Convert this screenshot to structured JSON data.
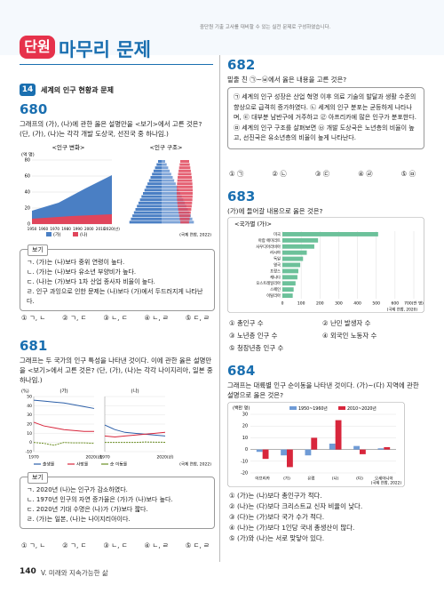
{
  "header": {
    "badge": "단원",
    "title": "마무리 문제",
    "note": "중단원 기출 고사를 대비할 수 있는 실전 문제로 구성하였습니다."
  },
  "section": {
    "number": "14",
    "title": "세계의 인구 현황과 문제"
  },
  "q680": {
    "number": "680",
    "question": "그래프의 (가), (나)에 관한 옳은 설명만을 <보기>에서 고른 것은? (단, (가), (나)는 각각 개발 도상국, 선진국 중 하나임.)",
    "chart": {
      "left_title": "<인구 변화>",
      "right_title": "<인구 구조>",
      "unit": "(억 명)",
      "yticks": [
        80,
        60,
        40,
        20,
        0
      ],
      "xticks": [
        "1950",
        "1960",
        "1970",
        "1980",
        "1990",
        "2000",
        "2010",
        "2020(년)"
      ],
      "legend": [
        "(가)",
        "(나)"
      ],
      "source": "(국제 연합, 2022)"
    },
    "bogi_title": "보기",
    "bogi": [
      "ㄱ. (가)는 (나)보다 중위 연령이 높다.",
      "ㄴ. (가)는 (나)보다 유소년 부양비가 높다.",
      "ㄷ. (나)는 (가)보다 1차 산업 종사자 비율이 높다.",
      "ㄹ. 인구 과잉으로 인한 문제는 (나)보다 (가)에서 두드러지게 나타난다."
    ],
    "options": [
      "① ㄱ, ㄴ",
      "② ㄱ, ㄷ",
      "③ ㄴ, ㄷ",
      "④ ㄴ, ㄹ",
      "⑤ ㄷ, ㄹ"
    ]
  },
  "q681": {
    "number": "681",
    "question": "그래프는 두 국가의 인구 특성을 나타낸 것이다. 이에 관한 옳은 설명만을 <보기>에서 고른 것은? (단, (가), (나)는 각각 나이지리아, 일본 중 하나임.)",
    "chart": {
      "unit": "(%)",
      "panels": [
        "(가)",
        "(나)"
      ],
      "yticks": [
        50,
        40,
        30,
        20,
        10,
        0,
        -10
      ],
      "xticks": [
        "1970",
        "2020(년)"
      ],
      "legend": [
        "출생률",
        "사망률",
        "순 이동률"
      ],
      "source": "(국제 연합, 2022)"
    },
    "bogi_title": "보기",
    "bogi": [
      "ㄱ. 2020년 (나)는 인구가 감소하였다.",
      "ㄴ. 1970년 인구의 자연 증가율은 (가)가 (나)보다 높다.",
      "ㄷ. 2020년 기대 수명은 (나)가 (가)보다 짧다.",
      "ㄹ. (가)는 일본, (나)는 나이지리아이다."
    ],
    "options": [
      "① ㄱ, ㄴ",
      "② ㄱ, ㄷ",
      "③ ㄴ, ㄷ",
      "④ ㄴ, ㄹ",
      "⑤ ㄷ, ㄹ"
    ]
  },
  "q682": {
    "number": "682",
    "question": "밑줄 친 ㉠~㉥에서 옳은 내용을 고른 것은?",
    "box": "㉠ 세계의 인구 성장은 산업 혁명 이후 의료 기술의 발달과 생활 수준의 향상으로 급격히 증가하였다. ㉡ 세계의 인구 분포는 균등하게 나타나며, ㉢ 대부분 남반구에 거주하고 ㉣ 아프리카에 많은 인구가 분포한다. ㉤ 세계의 인구 구조를 살펴보면 ㉥ 개발 도상국은 노년층의 비율이 높고, 선진국은 유소년층의 비율이 높게 나타난다.",
    "options": [
      "① ㉠",
      "② ㉡",
      "③ ㉢",
      "④ ㉣",
      "⑤ ㉤"
    ]
  },
  "q683": {
    "number": "683",
    "question": "(가)에 들어갈 내용으로 옳은 것은?",
    "chart_data": {
      "type": "bar",
      "title": "<국가별 (가)>",
      "color": "#6cc19a",
      "categories": [
        "미국",
        "아랍 에미리트",
        "사우디아라비아",
        "러시아",
        "독일",
        "영국",
        "프랑스",
        "캐나다",
        "오스트레일리아",
        "스페인",
        "이탈리아"
      ],
      "values": [
        510,
        190,
        170,
        130,
        110,
        95,
        85,
        80,
        70,
        60,
        55
      ],
      "xlim": [
        0,
        700
      ],
      "xticks": [
        0,
        100,
        200,
        300,
        400,
        500,
        600,
        {
          "value": 700,
          "label": "700(만 명)"
        }
      ],
      "source": "(국제 연합, 2020)"
    },
    "options": [
      "① 총인구 수",
      "② 난민 발생자 수",
      "③ 노년층 인구 수",
      "④ 외국인 노동자 수",
      "⑤ 청장년층 인구 수"
    ]
  },
  "q684": {
    "number": "684",
    "question": "그래프는 대륙별 인구 순이동을 나타낸 것이다. (가)~(다) 지역에 관한 설명으로 옳은 것은?",
    "chart_data": {
      "type": "bar",
      "unit": "(백만 명)",
      "categories": [
        "아프리카",
        "(가)",
        "유럽",
        "(나)",
        "(다)",
        "오세아니아"
      ],
      "series": [
        {
          "name": "1950~1960년",
          "color": "#6f9bd6",
          "values": [
            -2,
            -5,
            -5,
            5,
            3,
            1
          ]
        },
        {
          "name": "2010~2020년",
          "color": "#d8263c",
          "values": [
            -8,
            -15,
            10,
            25,
            -4,
            2
          ]
        }
      ],
      "ylim": [
        -20,
        30
      ],
      "yticks": [
        -20,
        -10,
        0,
        10,
        20,
        30
      ],
      "source": "(국제 연합, 2022)"
    },
    "options": [
      "① (가)는 (나)보다 총인구가 적다.",
      "② (나)는 (다)보다 크리스트교 신자 비율이 낮다.",
      "③ (다)는 (가)보다 국가 수가 적다.",
      "④ (나)는 (가)보다 1인당 국내 총생산이 많다.",
      "⑤ (가)와 (나)는 서로 맞닿아 있다."
    ]
  },
  "footer": {
    "page": "140",
    "unit": "V. 미래와 지속가능한 삶"
  }
}
